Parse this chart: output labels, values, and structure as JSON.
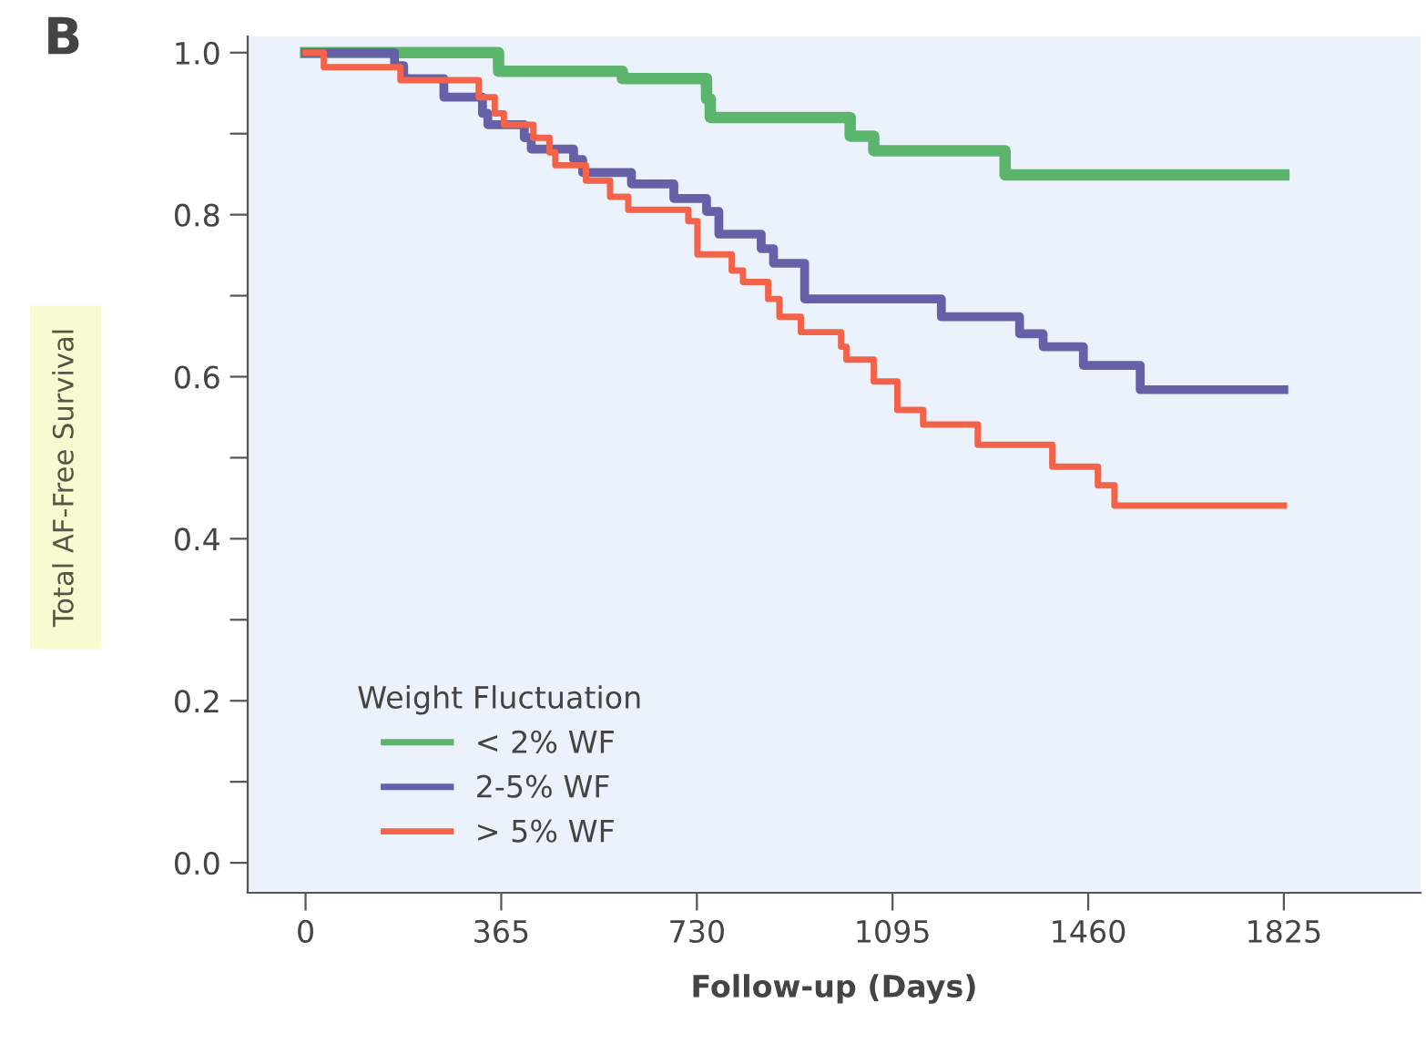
{
  "chart_data": {
    "type": "step",
    "xlabel": "Follow-up (Days)",
    "ylabel": "Total AF-Free Survival",
    "legend_title": "Weight Fluctuation",
    "annotations": [
      "B"
    ],
    "xlim": [
      -108,
      2080
    ],
    "xticks": [
      0,
      365,
      730,
      1095,
      1460,
      1825
    ],
    "ylim": [
      -0.037,
      1.02
    ],
    "yticks": [
      {
        "value": 0.0,
        "label": "0.0"
      },
      {
        "value": 0.1,
        "label": null
      },
      {
        "value": 0.2,
        "label": "0.2"
      },
      {
        "value": 0.3,
        "label": null
      },
      {
        "value": 0.4,
        "label": "0.4"
      },
      {
        "value": 0.5,
        "label": null
      },
      {
        "value": 0.6,
        "label": "0.6"
      },
      {
        "value": 0.7,
        "label": null
      },
      {
        "value": 0.8,
        "label": "0.8"
      },
      {
        "value": 0.9,
        "label": null
      },
      {
        "value": 1.0,
        "label": "1.0"
      }
    ],
    "grid": false,
    "legend": "bottom left",
    "series": [
      {
        "name": "< 2% WF",
        "color": "#5cb56d",
        "x": [
          0,
          360,
          591,
          748,
          755,
          1016,
          1060,
          1305,
          1825
        ],
        "values": [
          1.0,
          0.977,
          0.968,
          0.943,
          0.92,
          0.897,
          0.879,
          0.849,
          0.849
        ]
      },
      {
        "name": "2-5% WF",
        "color": "#6560a8",
        "x": [
          0,
          166,
          183,
          258,
          330,
          340,
          408,
          421,
          500,
          517,
          608,
          687,
          748,
          771,
          850,
          873,
          931,
          1186,
          1332,
          1376,
          1451,
          1557,
          1825
        ],
        "values": [
          1.0,
          0.984,
          0.968,
          0.945,
          0.925,
          0.911,
          0.895,
          0.881,
          0.868,
          0.852,
          0.838,
          0.82,
          0.804,
          0.776,
          0.758,
          0.74,
          0.696,
          0.674,
          0.653,
          0.637,
          0.614,
          0.584,
          0.584
        ]
      },
      {
        "name": "> 5% WF",
        "color": "#f2634a",
        "x": [
          0,
          34,
          177,
          323,
          353,
          370,
          425,
          455,
          466,
          523,
          568,
          602,
          714,
          731,
          795,
          816,
          863,
          884,
          924,
          999,
          1009,
          1060,
          1104,
          1152,
          1254,
          1393,
          1478,
          1509,
          1825
        ],
        "values": [
          1.0,
          0.982,
          0.966,
          0.945,
          0.925,
          0.911,
          0.895,
          0.877,
          0.861,
          0.842,
          0.822,
          0.806,
          0.792,
          0.751,
          0.731,
          0.717,
          0.696,
          0.674,
          0.655,
          0.637,
          0.621,
          0.594,
          0.559,
          0.541,
          0.516,
          0.489,
          0.466,
          0.441,
          0.441
        ]
      }
    ]
  }
}
